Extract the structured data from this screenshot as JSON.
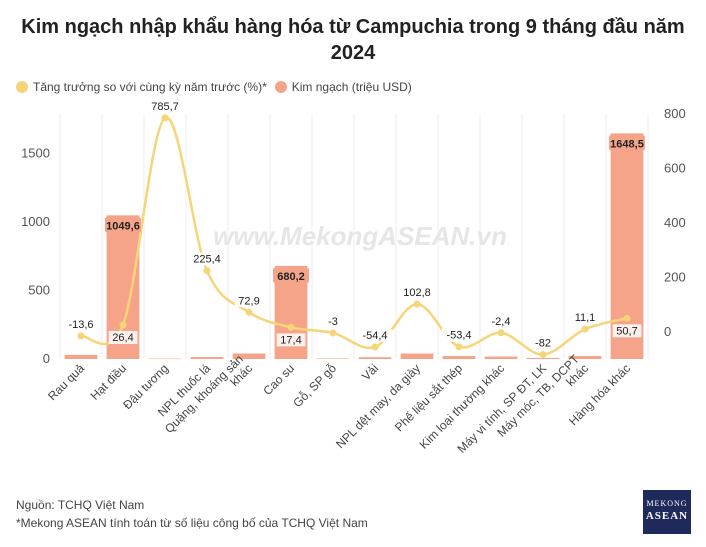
{
  "title": "Kim ngạch nhập khẩu hàng hóa từ Campuchia trong 9 tháng đầu năm 2024",
  "legend": {
    "line_label": "Tăng trưởng so với cùng kỳ năm trước (%)*",
    "bar_label": "Kim ngạch (triệu USD)"
  },
  "watermark": "www.MekongASEAN.vn",
  "footer": {
    "source": "Nguồn: TCHQ Việt Nam",
    "note": "*Mekong ASEAN tính toán từ số liệu công bố của TCHQ Việt Nam"
  },
  "logo": {
    "line1": "MEKONG",
    "line2": "ASEAN"
  },
  "colors": {
    "bar": "#f6a489",
    "line": "#f5d577",
    "grid": "#eeeeee"
  },
  "chart_data": {
    "type": "bar",
    "categories": [
      "Rau quả",
      "Hạt điều",
      "Đậu tương",
      "NPL thuốc lá",
      "Quặng, khoáng sản khác",
      "Cao su",
      "Gỗ, SP gỗ",
      "Vải",
      "NPL dệt may, da giày",
      "Phế liệu sắt thép",
      "Kim loại thường khác",
      "Máy vi tính, SP ĐT, LK",
      "Máy móc, TB, DCPT khác",
      "Hàng hóa khác"
    ],
    "series": [
      {
        "name": "Kim ngạch (triệu USD)",
        "type": "bar",
        "axis": "left",
        "values": [
          30,
          1049.6,
          3,
          15,
          40,
          680.2,
          4,
          13,
          40,
          22,
          18,
          8,
          22,
          1648.5
        ],
        "labels": [
          "",
          "1049,6",
          "",
          "",
          "",
          "680,2",
          "",
          "",
          "",
          "",
          "",
          "",
          "",
          "1648,5"
        ]
      },
      {
        "name": "Tăng trưởng so với cùng kỳ năm trước (%)*",
        "type": "line",
        "axis": "right",
        "values": [
          -13.6,
          26.4,
          785.7,
          225.4,
          72.9,
          17.4,
          -3,
          -54.4,
          102.8,
          -53.4,
          -2.4,
          -82,
          11.1,
          50.7
        ],
        "labels": [
          "-13,6",
          "26,4",
          "785,7",
          "225,4",
          "72,9",
          "17,4",
          "-3",
          "-54,4",
          "102,8",
          "-53,4",
          "-2,4",
          "-82",
          "11,1",
          "50,7"
        ]
      }
    ],
    "y_left": {
      "ticks": [
        "0",
        "500",
        "1000",
        "1500"
      ],
      "tick_values": [
        0,
        500,
        1000,
        1500
      ],
      "lim": [
        0,
        1790
      ]
    },
    "y_right": {
      "ticks": [
        "0",
        "200",
        "400",
        "600",
        "800"
      ],
      "tick_values": [
        0,
        200,
        400,
        600,
        800
      ],
      "lim": [
        -98.5,
        800
      ]
    },
    "grid": "vertical",
    "legend_position": "top-left"
  }
}
